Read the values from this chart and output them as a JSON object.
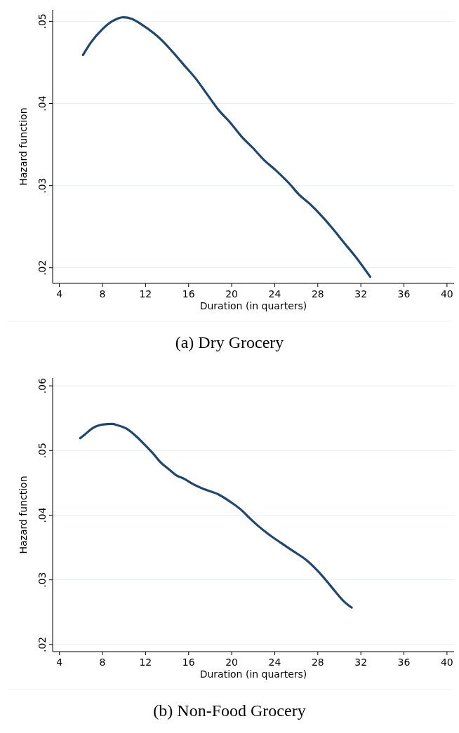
{
  "chart_data": [
    {
      "type": "line",
      "title": "(a) Dry Grocery",
      "xlabel": "Duration (in quarters)",
      "ylabel": "Hazard function",
      "xlim": [
        3.37,
        40.66
      ],
      "ylim": [
        0.0181,
        0.0514
      ],
      "xticks": [
        4,
        8,
        12,
        16,
        20,
        24,
        28,
        32,
        36,
        40
      ],
      "yticks": [
        {
          "value": 0.02,
          "label": ".02"
        },
        {
          "value": 0.03,
          "label": ".03"
        },
        {
          "value": 0.04,
          "label": ".04"
        },
        {
          "value": 0.05,
          "label": ".05"
        }
      ],
      "grid": "y",
      "line_style": "solid",
      "series": [
        {
          "color": "#1f4770",
          "x": [
            6.19,
            6.91,
            7.96,
            8.89,
            9.94,
            10.74,
            11.66,
            12.72,
            13.51,
            14.57,
            15.62,
            16.68,
            17.73,
            18.79,
            19.85,
            20.9,
            21.96,
            23.02,
            24.07,
            25.39,
            26.19,
            27.24,
            28.3,
            29.36,
            30.41,
            31.47,
            32.87
          ],
          "values": [
            0.0459,
            0.0474,
            0.049,
            0.05,
            0.0505,
            0.0503,
            0.0496,
            0.0486,
            0.0477,
            0.0462,
            0.0446,
            0.043,
            0.0411,
            0.0392,
            0.0377,
            0.036,
            0.0346,
            0.0331,
            0.0319,
            0.0302,
            0.029,
            0.0278,
            0.0264,
            0.0248,
            0.0231,
            0.0214,
            0.0189
          ]
        }
      ]
    },
    {
      "type": "line",
      "title": "(b) Non-Food Grocery",
      "xlabel": "Duration (in quarters)",
      "ylabel": "Hazard function",
      "xlim": [
        3.37,
        40.66
      ],
      "ylim": [
        0.0189,
        0.0612
      ],
      "xticks": [
        4,
        8,
        12,
        16,
        20,
        24,
        28,
        32,
        36,
        40
      ],
      "yticks": [
        {
          "value": 0.02,
          "label": ".02"
        },
        {
          "value": 0.03,
          "label": ".03"
        },
        {
          "value": 0.04,
          "label": ".04"
        },
        {
          "value": 0.05,
          "label": ".05"
        },
        {
          "value": 0.06,
          "label": ".06"
        }
      ],
      "grid": "y",
      "line_style": "solid",
      "series": [
        {
          "color": "#1f4770",
          "x": [
            5.93,
            6.38,
            7.04,
            7.96,
            8.89,
            9.41,
            10.21,
            11.13,
            11.92,
            12.72,
            13.38,
            14.17,
            14.83,
            15.62,
            16.41,
            17.47,
            18.79,
            19.85,
            20.9,
            21.7,
            22.49,
            23.55,
            24.6,
            25.66,
            26.98,
            28.04,
            28.83,
            29.62,
            30.41,
            31.15
          ],
          "values": [
            0.0519,
            0.0525,
            0.0534,
            0.054,
            0.0541,
            0.0539,
            0.0534,
            0.0522,
            0.0509,
            0.0495,
            0.0482,
            0.0471,
            0.0462,
            0.0456,
            0.0448,
            0.044,
            0.0432,
            0.0421,
            0.0408,
            0.0395,
            0.0383,
            0.0369,
            0.0357,
            0.0345,
            0.033,
            0.0313,
            0.0298,
            0.0282,
            0.0267,
            0.0257
          ]
        }
      ]
    }
  ]
}
